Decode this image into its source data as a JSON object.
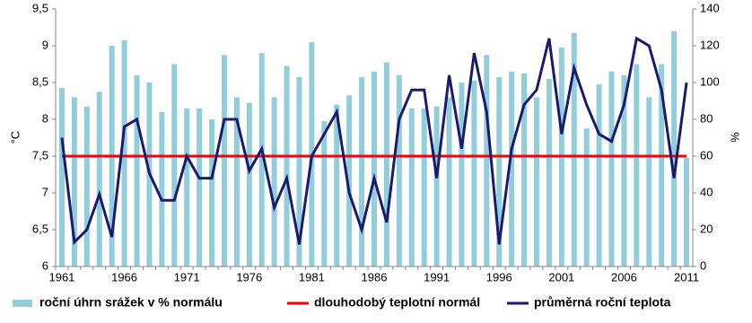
{
  "chart_data": {
    "type": "bar",
    "ylabel": "°C",
    "y2label": "%",
    "categories": [
      "1961",
      null,
      null,
      null,
      null,
      "1966",
      null,
      null,
      null,
      null,
      "1971",
      null,
      null,
      null,
      null,
      "1976",
      null,
      null,
      null,
      null,
      "1981",
      null,
      null,
      null,
      null,
      "1986",
      null,
      null,
      null,
      null,
      "1991",
      null,
      null,
      null,
      null,
      "1996",
      null,
      null,
      null,
      null,
      "2001",
      null,
      null,
      null,
      null,
      "2006",
      null,
      null,
      null,
      null,
      "2011"
    ],
    "ylim": [
      6,
      9.5
    ],
    "yticks": [
      6,
      {
        "value": 6.5,
        "label": "6,5"
      },
      7,
      {
        "value": 7.5,
        "label": "7,5"
      },
      8,
      {
        "value": 8.5,
        "label": "8,5"
      },
      9,
      {
        "value": 9.5,
        "label": "9,5"
      }
    ],
    "y2lim": [
      0,
      140
    ],
    "y2ticks": [
      0,
      20,
      40,
      60,
      80,
      100,
      120,
      140
    ],
    "series": [
      {
        "name": "roční úhrn srážek v % normálu",
        "type": "bar",
        "axis": "y2",
        "color": "#92cddc",
        "values": [
          97,
          92,
          87,
          95,
          120,
          123,
          104,
          100,
          84,
          110,
          86,
          86,
          80,
          115,
          92,
          89,
          116,
          92,
          109,
          103,
          122,
          79,
          88,
          93,
          103,
          106,
          111,
          104,
          86,
          86,
          87,
          92,
          100,
          101,
          115,
          103,
          106,
          105,
          92,
          102,
          119,
          127,
          75,
          99,
          106,
          104,
          110,
          92,
          110,
          128,
          59
        ]
      },
      {
        "name": "dlouhodobý teplotní normál",
        "type": "line",
        "color": "#ff0000",
        "values": [
          7.5,
          7.5,
          7.5,
          7.5,
          7.5,
          7.5,
          7.5,
          7.5,
          7.5,
          7.5,
          7.5,
          7.5,
          7.5,
          7.5,
          7.5,
          7.5,
          7.5,
          7.5,
          7.5,
          7.5,
          7.5,
          7.5,
          7.5,
          7.5,
          7.5,
          7.5,
          7.5,
          7.5,
          7.5,
          7.5,
          7.5,
          7.5,
          7.5,
          7.5,
          7.5,
          7.5,
          7.5,
          7.5,
          7.5,
          7.5,
          7.5,
          7.5,
          7.5,
          7.5,
          7.5,
          7.5,
          7.5,
          7.5,
          7.5,
          7.5,
          7.5
        ]
      },
      {
        "name": "průměrná roční teplota",
        "type": "line",
        "color": "#1c1a6e",
        "values": [
          7.75,
          6.33,
          6.5,
          6.98,
          6.4,
          7.9,
          8.0,
          7.27,
          6.9,
          6.9,
          7.5,
          7.2,
          7.2,
          8.0,
          8.0,
          7.3,
          7.6,
          6.8,
          7.2,
          6.3,
          7.5,
          7.8,
          8.1,
          7.0,
          6.5,
          7.2,
          6.6,
          8.0,
          8.4,
          8.4,
          7.2,
          8.6,
          7.6,
          8.9,
          8.1,
          6.3,
          7.6,
          8.2,
          8.4,
          9.1,
          7.8,
          8.7,
          8.2,
          7.8,
          7.7,
          8.2,
          9.1,
          9.0,
          8.4,
          7.2,
          8.5
        ]
      }
    ]
  }
}
